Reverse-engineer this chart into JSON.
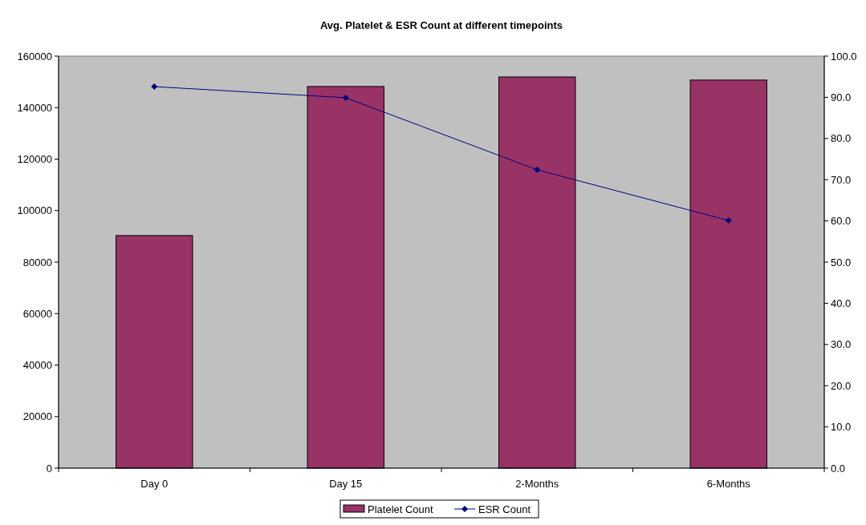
{
  "chart_data": {
    "type": "bar",
    "title": "Avg. Platelet & ESR Count at different timepoints",
    "categories": [
      "Day 0",
      "Day 15",
      "2-Months",
      "6-Months"
    ],
    "series": [
      {
        "name": "Platelet Count",
        "color": "#993366",
        "values": [
          90300,
          148200,
          151900,
          150700
        ]
      },
      {
        "name": "ESR Count",
        "type": "line",
        "axis": "y2",
        "color": "#000080",
        "marker": "diamond",
        "values": [
          92.6,
          89.9,
          72.4,
          60.1
        ]
      }
    ],
    "ylim": [
      0,
      160000
    ],
    "yticks": [
      0,
      20000,
      40000,
      60000,
      80000,
      100000,
      120000,
      140000,
      160000
    ],
    "y2lim": [
      0,
      100
    ],
    "y2ticks": [
      {
        "value": 0,
        "label": "0.0"
      },
      {
        "value": 10,
        "label": "10.0"
      },
      {
        "value": 20,
        "label": "20.0"
      },
      {
        "value": 30,
        "label": "30.0"
      },
      {
        "value": 40,
        "label": "40.0"
      },
      {
        "value": 50,
        "label": "50.0"
      },
      {
        "value": 60,
        "label": "60.0"
      },
      {
        "value": 70,
        "label": "70.0"
      },
      {
        "value": 80,
        "label": "80.0"
      },
      {
        "value": 90,
        "label": "90.0"
      },
      {
        "value": 100,
        "label": "100.0"
      }
    ],
    "legend": "bottom"
  }
}
